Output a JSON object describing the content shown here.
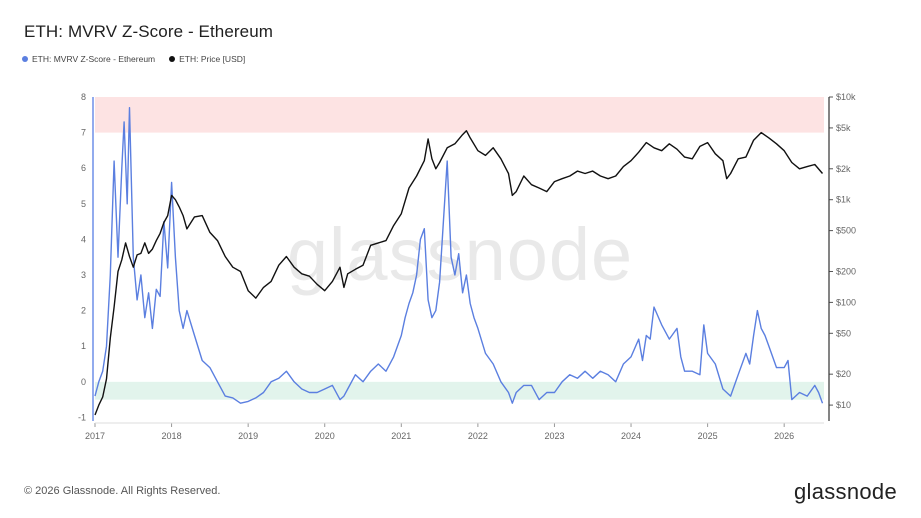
{
  "title": "ETH: MVRV Z-Score - Ethereum",
  "legend": [
    {
      "label": "ETH: MVRV Z-Score - Ethereum",
      "color": "#5b7fe0"
    },
    {
      "label": "ETH: Price [USD]",
      "color": "#111111"
    }
  ],
  "watermark": "glassnode",
  "footer": "© 2026 Glassnode. All Rights Reserved.",
  "brand": "glassnode",
  "colors": {
    "zscore": "#5b7fe0",
    "price": "#111111",
    "overvalued_band": "#fde3e3",
    "undervalued_band": "#e2f4ec",
    "grid": "#f0f0f0"
  },
  "chart_data": {
    "type": "line",
    "title": "ETH: MVRV Z-Score - Ethereum",
    "x_range": [
      2017.0,
      2026.52
    ],
    "x_ticks": [
      "2017",
      "2018",
      "2019",
      "2020",
      "2021",
      "2022",
      "2023",
      "2024",
      "2025",
      "2026"
    ],
    "left_axis": {
      "ylim": [
        -1.1,
        8
      ],
      "ticks": [
        "8",
        "7",
        "6",
        "5",
        "4",
        "3",
        "2",
        "1",
        "0",
        "-1"
      ]
    },
    "right_axis": {
      "scale": "log",
      "ylim": [
        7,
        10000
      ],
      "ticks": [
        {
          "value": 10000,
          "label": "$10k"
        },
        {
          "value": 5000,
          "label": "$5k"
        },
        {
          "value": 2000,
          "label": "$2k"
        },
        {
          "value": 1000,
          "label": "$1k"
        },
        {
          "value": 500,
          "label": "$500"
        },
        {
          "value": 200,
          "label": "$200"
        },
        {
          "value": 100,
          "label": "$100"
        },
        {
          "value": 50,
          "label": "$50"
        },
        {
          "value": 20,
          "label": "$20"
        },
        {
          "value": 10,
          "label": "$10"
        }
      ]
    },
    "bands": [
      {
        "from": 7,
        "to": 8
      },
      {
        "from": -0.5,
        "to": 0
      }
    ],
    "series": [
      {
        "name": "ETH: MVRV Z-Score - Ethereum",
        "axis": "left",
        "x": [
          2017.0,
          2017.05,
          2017.1,
          2017.15,
          2017.2,
          2017.25,
          2017.3,
          2017.35,
          2017.38,
          2017.42,
          2017.45,
          2017.5,
          2017.55,
          2017.6,
          2017.65,
          2017.7,
          2017.75,
          2017.8,
          2017.85,
          2017.9,
          2017.95,
          2018.0,
          2018.05,
          2018.1,
          2018.15,
          2018.2,
          2018.3,
          2018.4,
          2018.5,
          2018.6,
          2018.7,
          2018.8,
          2018.9,
          2019.0,
          2019.1,
          2019.2,
          2019.3,
          2019.4,
          2019.5,
          2019.6,
          2019.7,
          2019.8,
          2019.9,
          2020.0,
          2020.1,
          2020.2,
          2020.25,
          2020.3,
          2020.4,
          2020.5,
          2020.6,
          2020.7,
          2020.8,
          2020.9,
          2021.0,
          2021.05,
          2021.1,
          2021.15,
          2021.2,
          2021.25,
          2021.3,
          2021.35,
          2021.4,
          2021.45,
          2021.5,
          2021.55,
          2021.6,
          2021.65,
          2021.7,
          2021.75,
          2021.8,
          2021.85,
          2021.9,
          2021.95,
          2022.0,
          2022.1,
          2022.2,
          2022.3,
          2022.4,
          2022.45,
          2022.5,
          2022.6,
          2022.7,
          2022.8,
          2022.9,
          2023.0,
          2023.1,
          2023.2,
          2023.3,
          2023.4,
          2023.5,
          2023.6,
          2023.7,
          2023.8,
          2023.9,
          2024.0,
          2024.1,
          2024.15,
          2024.2,
          2024.25,
          2024.3,
          2024.4,
          2024.5,
          2024.6,
          2024.65,
          2024.7,
          2024.8,
          2024.9,
          2024.95,
          2025.0,
          2025.1,
          2025.2,
          2025.3,
          2025.4,
          2025.5,
          2025.55,
          2025.6,
          2025.65,
          2025.7,
          2025.75,
          2025.8,
          2025.9,
          2026.0,
          2026.05,
          2026.1,
          2026.2,
          2026.3,
          2026.4,
          2026.45,
          2026.5
        ],
        "y": [
          -0.4,
          0.0,
          0.3,
          1.0,
          3.0,
          6.2,
          3.5,
          6.0,
          7.3,
          5.0,
          7.7,
          3.5,
          2.3,
          3.0,
          1.8,
          2.5,
          1.5,
          2.6,
          2.4,
          4.5,
          3.2,
          5.6,
          3.5,
          2.0,
          1.5,
          2.0,
          1.3,
          0.6,
          0.4,
          0.0,
          -0.4,
          -0.45,
          -0.6,
          -0.55,
          -0.45,
          -0.3,
          0.0,
          0.1,
          0.3,
          0.0,
          -0.2,
          -0.3,
          -0.3,
          -0.2,
          -0.1,
          -0.5,
          -0.4,
          -0.2,
          0.2,
          0.0,
          0.3,
          0.5,
          0.3,
          0.7,
          1.3,
          1.8,
          2.2,
          2.5,
          3.0,
          4.0,
          4.3,
          2.3,
          1.8,
          2.0,
          2.8,
          4.5,
          6.2,
          3.5,
          3.0,
          3.6,
          2.5,
          3.0,
          2.2,
          1.8,
          1.5,
          0.8,
          0.5,
          0.0,
          -0.3,
          -0.6,
          -0.3,
          -0.1,
          -0.1,
          -0.5,
          -0.3,
          -0.3,
          0.0,
          0.2,
          0.1,
          0.3,
          0.1,
          0.3,
          0.2,
          0.0,
          0.5,
          0.7,
          1.2,
          0.6,
          1.3,
          1.2,
          2.1,
          1.6,
          1.2,
          1.5,
          0.7,
          0.3,
          0.3,
          0.2,
          1.6,
          0.8,
          0.5,
          -0.2,
          -0.4,
          0.2,
          0.8,
          0.5,
          1.3,
          2.0,
          1.5,
          1.3,
          1.0,
          0.4,
          0.4,
          0.6,
          -0.5,
          -0.3,
          -0.4,
          -0.1,
          -0.3,
          -0.6
        ]
      },
      {
        "name": "ETH: Price [USD]",
        "axis": "right",
        "x": [
          2017.0,
          2017.05,
          2017.1,
          2017.15,
          2017.2,
          2017.25,
          2017.3,
          2017.35,
          2017.4,
          2017.45,
          2017.5,
          2017.55,
          2017.6,
          2017.65,
          2017.7,
          2017.75,
          2017.8,
          2017.85,
          2017.9,
          2017.95,
          2018.0,
          2018.05,
          2018.1,
          2018.15,
          2018.2,
          2018.3,
          2018.4,
          2018.5,
          2018.6,
          2018.7,
          2018.8,
          2018.9,
          2019.0,
          2019.1,
          2019.2,
          2019.3,
          2019.4,
          2019.5,
          2019.6,
          2019.7,
          2019.8,
          2019.9,
          2020.0,
          2020.1,
          2020.2,
          2020.25,
          2020.3,
          2020.4,
          2020.5,
          2020.6,
          2020.7,
          2020.8,
          2020.9,
          2021.0,
          2021.1,
          2021.2,
          2021.3,
          2021.35,
          2021.4,
          2021.45,
          2021.5,
          2021.6,
          2021.7,
          2021.8,
          2021.85,
          2021.9,
          2022.0,
          2022.1,
          2022.2,
          2022.3,
          2022.4,
          2022.45,
          2022.5,
          2022.6,
          2022.7,
          2022.8,
          2022.9,
          2023.0,
          2023.1,
          2023.2,
          2023.3,
          2023.4,
          2023.5,
          2023.6,
          2023.7,
          2023.8,
          2023.9,
          2024.0,
          2024.1,
          2024.2,
          2024.3,
          2024.4,
          2024.5,
          2024.6,
          2024.7,
          2024.8,
          2024.9,
          2025.0,
          2025.1,
          2025.2,
          2025.25,
          2025.3,
          2025.4,
          2025.5,
          2025.6,
          2025.7,
          2025.8,
          2025.9,
          2026.0,
          2026.1,
          2026.2,
          2026.3,
          2026.4,
          2026.5
        ],
        "y": [
          8,
          10,
          12,
          18,
          45,
          90,
          200,
          260,
          380,
          280,
          220,
          290,
          300,
          380,
          300,
          330,
          400,
          470,
          600,
          700,
          1100,
          1000,
          850,
          700,
          520,
          680,
          700,
          480,
          400,
          280,
          220,
          200,
          130,
          110,
          140,
          160,
          230,
          280,
          220,
          190,
          180,
          150,
          130,
          160,
          220,
          140,
          190,
          210,
          230,
          360,
          380,
          400,
          560,
          730,
          1300,
          1700,
          2400,
          3900,
          2500,
          2000,
          2300,
          3200,
          3500,
          4300,
          4700,
          4000,
          3000,
          2700,
          3200,
          2500,
          1800,
          1100,
          1200,
          1700,
          1400,
          1300,
          1200,
          1500,
          1600,
          1700,
          1900,
          1800,
          1900,
          1700,
          1600,
          1700,
          2100,
          2400,
          2900,
          3600,
          3200,
          3000,
          3500,
          3100,
          2600,
          2500,
          3300,
          3600,
          2800,
          2400,
          1600,
          1800,
          2500,
          2600,
          3800,
          4500,
          4000,
          3500,
          3000,
          2300,
          2000,
          2100,
          2200,
          1800
        ]
      }
    ]
  }
}
